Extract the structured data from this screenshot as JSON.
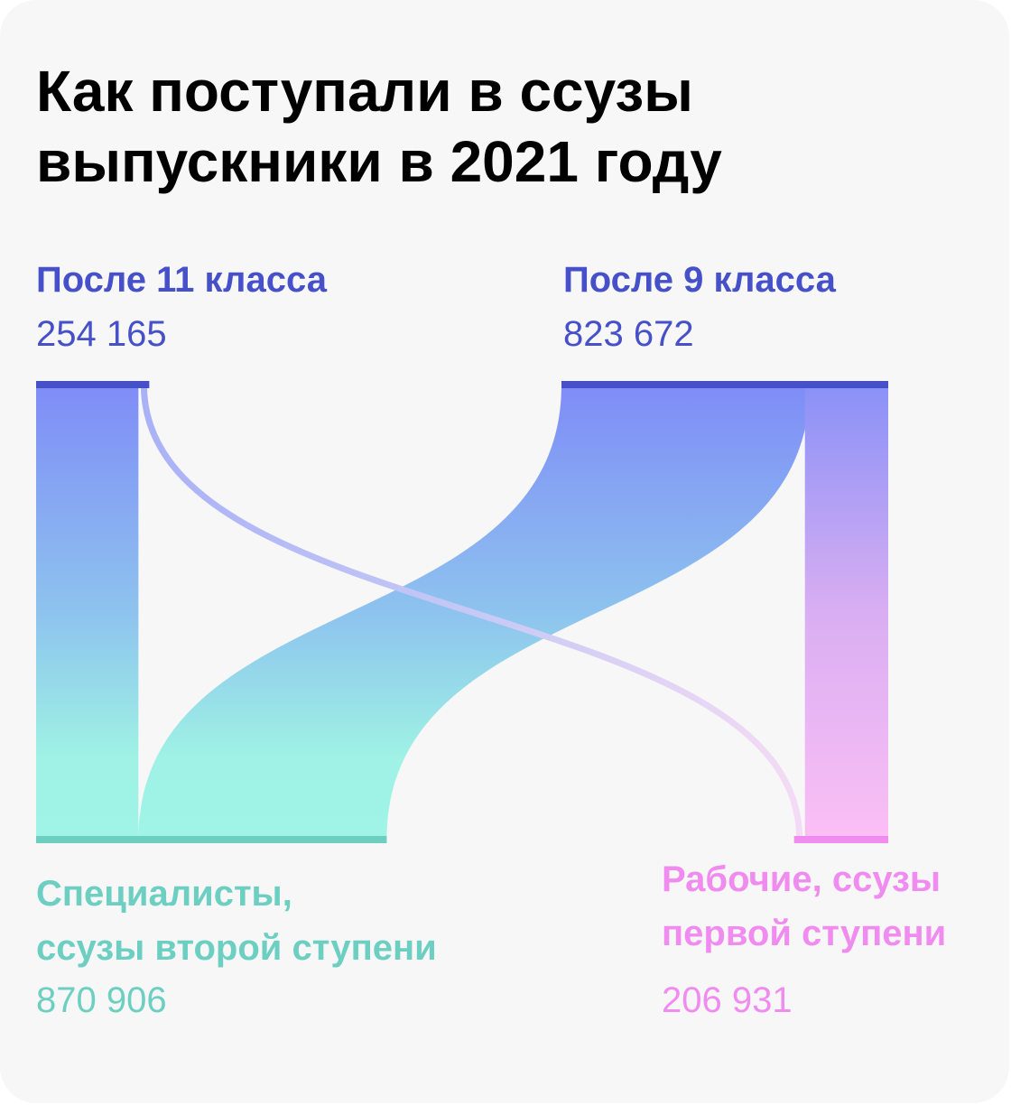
{
  "title_line1": "Как поступали в ссузы",
  "title_line2": "выпускники в 2021 году",
  "colors": {
    "source": "#4650c8",
    "specialists": "#6ccfc1",
    "workers": "#f08cf0"
  },
  "chart_data": {
    "type": "sankey",
    "title": "Как поступали в ссузы выпускники в 2021 году",
    "sources": [
      {
        "name": "После 11 класса",
        "value_label": "254 165",
        "value": 254165
      },
      {
        "name": "После 9 класса",
        "value_label": "823 672",
        "value": 823672
      }
    ],
    "targets": [
      {
        "name_line1": "Специалисты,",
        "name_line2": "ссузы второй ступени",
        "value_label": "870 906",
        "value": 870906
      },
      {
        "name_line1": "Рабочие, ссузы",
        "name_line2": "первой ступени",
        "value_label": "206 931",
        "value": 206931
      }
    ]
  }
}
